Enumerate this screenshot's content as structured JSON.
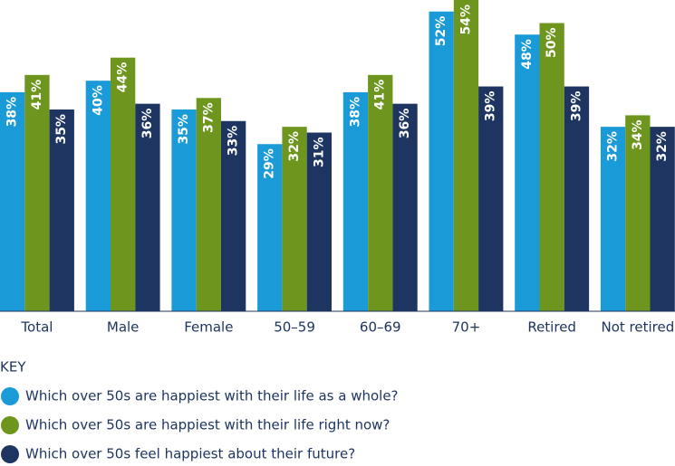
{
  "chart_data": {
    "type": "bar",
    "categories": [
      "Total",
      "Male",
      "Female",
      "50–59",
      "60–69",
      "70+",
      "Retired",
      "Not retired"
    ],
    "legend_title": "KEY",
    "series": [
      {
        "name": "Which over 50s are happiest with their life as a whole?",
        "color": "#1a9ad6",
        "values": [
          38,
          40,
          35,
          29,
          38,
          52,
          48,
          32
        ],
        "value_labels": [
          "38%",
          "40%",
          "35%",
          "29%",
          "38%",
          "52%",
          "48%",
          "32%"
        ]
      },
      {
        "name": "Which over 50s are happiest with their life right now?",
        "color": "#6e961e",
        "values": [
          41,
          44,
          37,
          32,
          41,
          54,
          50,
          34
        ],
        "value_labels": [
          "41%",
          "44%",
          "37%",
          "32%",
          "41%",
          "54%",
          "50%",
          "34%"
        ]
      },
      {
        "name": "Which over 50s feel happiest about their future?",
        "color": "#1e3461",
        "values": [
          35,
          36,
          33,
          31,
          36,
          39,
          39,
          32
        ],
        "value_labels": [
          "35%",
          "36%",
          "33%",
          "31%",
          "36%",
          "39%",
          "39%",
          "32%"
        ]
      }
    ]
  }
}
